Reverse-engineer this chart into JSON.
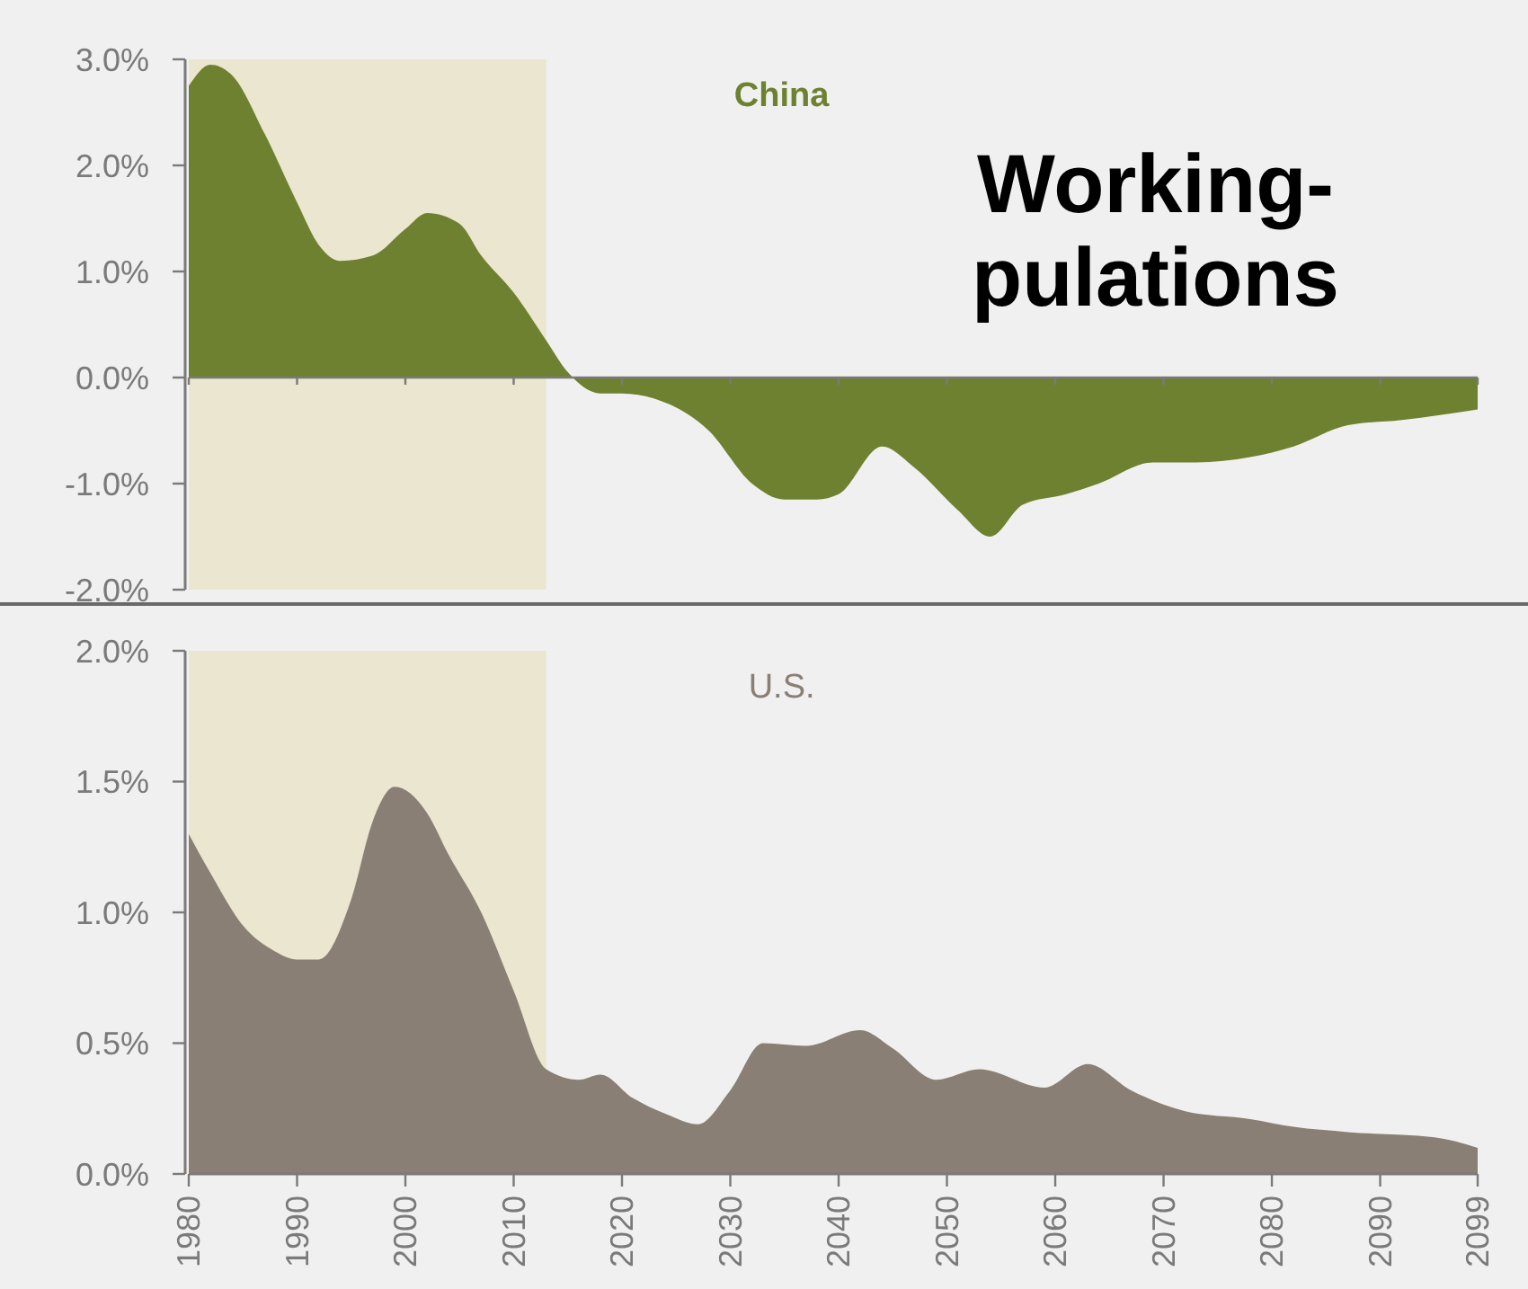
{
  "chart_data": [
    {
      "type": "area",
      "annotations": [
        "Working-",
        "pulations"
      ],
      "x": [
        1980,
        1982,
        1984,
        1987,
        1990,
        1992,
        1994,
        1997,
        2000,
        2002,
        2005,
        2007,
        2010,
        2013,
        2015,
        2018,
        2020,
        2023,
        2028,
        2032,
        2035,
        2038,
        2040,
        2044,
        2047,
        2051,
        2054,
        2057,
        2061,
        2064,
        2069,
        2073,
        2078,
        2082,
        2087,
        2092,
        2099
      ],
      "series": [
        {
          "name": "China",
          "color": "#6e8130",
          "values": [
            2.75,
            2.95,
            2.85,
            2.3,
            1.65,
            1.25,
            1.1,
            1.15,
            1.4,
            1.55,
            1.45,
            1.15,
            0.8,
            0.35,
            0.05,
            -0.15,
            -0.15,
            -0.2,
            -0.5,
            -1.0,
            -1.15,
            -1.15,
            -1.1,
            -0.65,
            -0.85,
            -1.25,
            -1.5,
            -1.2,
            -1.1,
            -1.0,
            -0.8,
            -0.8,
            -0.75,
            -0.65,
            -0.45,
            -0.4,
            -0.3
          ]
        }
      ],
      "xlim": [
        1980,
        2099
      ],
      "xticks": [
        1980,
        1990,
        2000,
        2010,
        2020,
        2030,
        2040,
        2050,
        2060,
        2070,
        2080,
        2090,
        2099
      ],
      "ylim": [
        -2,
        3
      ],
      "yticks": [
        {
          "value": 3,
          "label": "3.0%"
        },
        {
          "value": 2,
          "label": "2.0%"
        },
        {
          "value": 1,
          "label": "1.0%"
        },
        {
          "value": 0,
          "label": "0.0%"
        },
        {
          "value": -1,
          "label": "-1.0%"
        },
        {
          "value": -2,
          "label": "-2.0%"
        }
      ],
      "bands": [
        {
          "axis": "x",
          "from": 1980,
          "to": 2013,
          "color": "#ebe6d0"
        }
      ],
      "tick_labels": "y"
    },
    {
      "type": "area",
      "x": [
        1980,
        1982,
        1985,
        1988,
        1990,
        1992,
        1995,
        1997,
        1999,
        2002,
        2004,
        2007,
        2010,
        2013,
        2016,
        2018,
        2021,
        2024,
        2027,
        2030,
        2033,
        2037,
        2042,
        2045,
        2049,
        2053,
        2059,
        2063,
        2067,
        2072,
        2078,
        2082,
        2087,
        2095,
        2099
      ],
      "series": [
        {
          "name": "U.S.",
          "color": "#8a7f74",
          "values": [
            1.3,
            1.15,
            0.95,
            0.85,
            0.82,
            0.82,
            1.05,
            1.35,
            1.48,
            1.38,
            1.22,
            1.0,
            0.7,
            0.4,
            0.36,
            0.38,
            0.29,
            0.23,
            0.19,
            0.32,
            0.5,
            0.49,
            0.55,
            0.48,
            0.36,
            0.4,
            0.33,
            0.42,
            0.32,
            0.24,
            0.21,
            0.18,
            0.16,
            0.14,
            0.1
          ]
        }
      ],
      "xlim": [
        1980,
        2099
      ],
      "xticks": [
        1980,
        1990,
        2000,
        2010,
        2020,
        2030,
        2040,
        2050,
        2060,
        2070,
        2080,
        2090,
        2099
      ],
      "ylim": [
        0,
        2
      ],
      "yticks": [
        {
          "value": 2,
          "label": "2.0%"
        },
        {
          "value": 1.5,
          "label": "1.5%"
        },
        {
          "value": 1,
          "label": "1.0%"
        },
        {
          "value": 0.5,
          "label": "0.5%"
        },
        {
          "value": 0,
          "label": "0.0%"
        }
      ],
      "bands": [
        {
          "axis": "x",
          "from": 1980,
          "to": 2013,
          "color": "#ebe6d0"
        }
      ]
    }
  ]
}
